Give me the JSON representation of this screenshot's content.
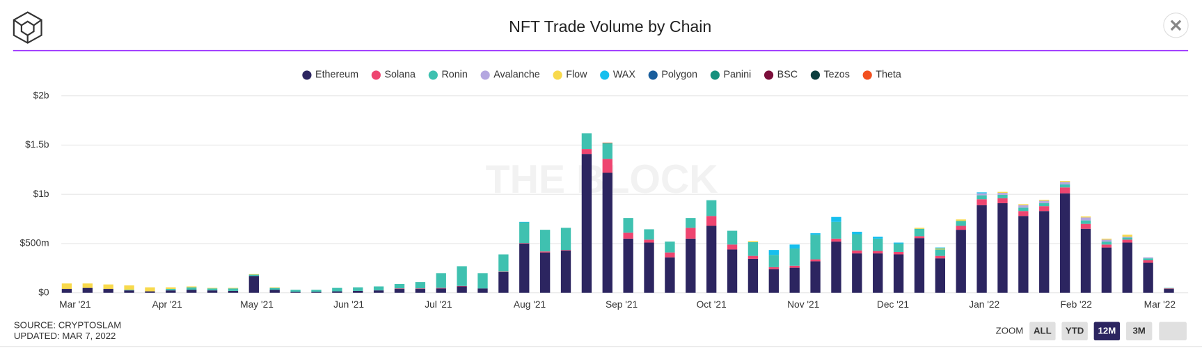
{
  "chart_data": {
    "type": "bar",
    "stacked": true,
    "title": "NFT Trade Volume by Chain",
    "watermark": "THE BLOCK",
    "source": "SOURCE: CRYPTOSLAM",
    "updated": "UPDATED: MAR 7, 2022",
    "zoom_label": "ZOOM",
    "zoom_buttons": [
      "ALL",
      "YTD",
      "12M",
      "3M"
    ],
    "zoom_active": 2,
    "categories": [
      null,
      null,
      null,
      null,
      null,
      null,
      null,
      null,
      null,
      null,
      null,
      null,
      null,
      null,
      null,
      null,
      null,
      null,
      null,
      null,
      null,
      null,
      null,
      null,
      null,
      null,
      null,
      null,
      null,
      null,
      null,
      null,
      null,
      null,
      null,
      null,
      null,
      null,
      null,
      null,
      null,
      null,
      null,
      null,
      null,
      null,
      null,
      null,
      null,
      null,
      null,
      null,
      null,
      null
    ],
    "xlim": [
      -0.5,
      53.5
    ],
    "xticks": [
      {
        "value": 0.16,
        "label": "Mar '21"
      },
      {
        "value": 4.59,
        "label": "Apr '21"
      },
      {
        "value": 8.9,
        "label": "May '21"
      },
      {
        "value": 13.32,
        "label": "Jun '21"
      },
      {
        "value": 17.63,
        "label": "Jul '21"
      },
      {
        "value": 22.02,
        "label": "Aug '21"
      },
      {
        "value": 26.44,
        "label": "Sep '21"
      },
      {
        "value": 30.76,
        "label": "Oct '21"
      },
      {
        "value": 35.18,
        "label": "Nov '21"
      },
      {
        "value": 39.49,
        "label": "Dec '21"
      },
      {
        "value": 43.88,
        "label": "Jan '22"
      },
      {
        "value": 48.3,
        "label": "Feb '22"
      },
      {
        "value": 52.32,
        "label": "Mar '22"
      }
    ],
    "ylim": [
      0,
      2000
    ],
    "yticks": [
      {
        "value": 0,
        "label": "$0"
      },
      {
        "value": 500,
        "label": "$500m"
      },
      {
        "value": 1000,
        "label": "$1b"
      },
      {
        "value": 1500,
        "label": "$1.5b"
      },
      {
        "value": 2000,
        "label": "$2b"
      }
    ],
    "grid": true,
    "legend": "top",
    "series": [
      {
        "name": "Ethereum",
        "color": "#2c2560",
        "values": [
          40,
          50,
          40,
          25,
          15,
          25,
          30,
          25,
          20,
          170,
          30,
          10,
          10,
          15,
          20,
          25,
          40,
          40,
          45,
          65,
          45,
          210,
          500,
          410,
          430,
          1410,
          1220,
          550,
          510,
          360,
          550,
          680,
          440,
          345,
          240,
          255,
          320,
          520,
          400,
          400,
          390,
          555,
          350,
          640,
          890,
          910,
          780,
          830,
          1010,
          650,
          460,
          510,
          305,
          40
        ]
      },
      {
        "name": "Solana",
        "color": "#ee4570",
        "values": [
          0,
          0,
          0,
          0,
          0,
          0,
          0,
          0,
          0,
          0,
          0,
          0,
          0,
          0,
          0,
          0,
          5,
          5,
          5,
          5,
          0,
          5,
          5,
          10,
          5,
          50,
          140,
          60,
          30,
          50,
          110,
          100,
          50,
          30,
          20,
          20,
          20,
          30,
          30,
          25,
          25,
          20,
          25,
          40,
          60,
          50,
          50,
          50,
          60,
          50,
          30,
          30,
          25,
          5
        ]
      },
      {
        "name": "Ronin",
        "color": "#3fc1b0",
        "values": [
          0,
          0,
          0,
          5,
          0,
          15,
          25,
          20,
          25,
          15,
          20,
          20,
          20,
          35,
          35,
          40,
          45,
          65,
          150,
          200,
          155,
          175,
          210,
          220,
          225,
          160,
          160,
          150,
          105,
          110,
          100,
          160,
          140,
          140,
          125,
          175,
          250,
          170,
          165,
          125,
          85,
          75,
          65,
          50,
          40,
          35,
          35,
          30,
          30,
          35,
          30,
          20,
          20,
          5
        ]
      },
      {
        "name": "Avalanche",
        "color": "#b4a7e0",
        "values": [
          0,
          0,
          0,
          0,
          0,
          0,
          0,
          0,
          0,
          0,
          0,
          0,
          0,
          0,
          0,
          0,
          0,
          0,
          0,
          0,
          0,
          0,
          0,
          0,
          0,
          0,
          0,
          0,
          0,
          0,
          0,
          0,
          0,
          0,
          0,
          0,
          0,
          0,
          0,
          0,
          0,
          0,
          0,
          0,
          20,
          20,
          25,
          25,
          25,
          30,
          20,
          10,
          10,
          0
        ]
      },
      {
        "name": "Flow",
        "color": "#f8d94b",
        "values": [
          55,
          45,
          45,
          45,
          40,
          15,
          10,
          5,
          5,
          5,
          5,
          0,
          0,
          0,
          0,
          0,
          0,
          0,
          0,
          0,
          0,
          0,
          0,
          0,
          0,
          0,
          0,
          0,
          0,
          0,
          0,
          0,
          0,
          10,
          0,
          0,
          0,
          0,
          0,
          0,
          0,
          10,
          10,
          15,
          0,
          10,
          10,
          10,
          10,
          10,
          10,
          20,
          0,
          0
        ]
      },
      {
        "name": "WAX",
        "color": "#16bfee",
        "values": [
          0,
          0,
          0,
          0,
          0,
          0,
          0,
          0,
          0,
          0,
          0,
          0,
          0,
          0,
          0,
          0,
          0,
          0,
          0,
          0,
          0,
          0,
          5,
          0,
          0,
          0,
          0,
          0,
          0,
          0,
          0,
          0,
          0,
          0,
          50,
          40,
          15,
          50,
          25,
          20,
          10,
          0,
          10,
          0,
          10,
          0,
          0,
          0,
          0,
          0,
          0,
          0,
          0,
          0
        ]
      },
      {
        "name": "Polygon",
        "color": "#1a5e9c",
        "values": [
          0,
          0,
          0,
          0,
          0,
          0,
          0,
          0,
          0,
          0,
          0,
          0,
          0,
          0,
          0,
          0,
          0,
          0,
          0,
          0,
          0,
          0,
          0,
          0,
          0,
          0,
          0,
          0,
          0,
          0,
          0,
          0,
          0,
          0,
          0,
          0,
          0,
          0,
          0,
          0,
          0,
          0,
          0,
          0,
          0,
          0,
          0,
          0,
          0,
          0,
          0,
          0,
          0,
          0
        ]
      },
      {
        "name": "Panini",
        "color": "#16917e",
        "values": [
          0,
          0,
          0,
          0,
          0,
          0,
          0,
          0,
          0,
          0,
          0,
          0,
          0,
          0,
          0,
          0,
          0,
          0,
          0,
          0,
          0,
          0,
          0,
          0,
          0,
          0,
          0,
          0,
          0,
          0,
          0,
          0,
          0,
          0,
          0,
          0,
          0,
          0,
          0,
          0,
          0,
          0,
          0,
          0,
          0,
          0,
          0,
          0,
          0,
          0,
          0,
          0,
          0,
          0
        ]
      },
      {
        "name": "BSC",
        "color": "#7b0f3b",
        "values": [
          0,
          0,
          0,
          0,
          0,
          0,
          0,
          0,
          0,
          0,
          0,
          0,
          0,
          0,
          0,
          0,
          0,
          0,
          0,
          0,
          0,
          0,
          0,
          0,
          0,
          0,
          0,
          0,
          0,
          0,
          0,
          0,
          0,
          0,
          0,
          0,
          0,
          0,
          0,
          0,
          0,
          0,
          0,
          0,
          0,
          0,
          0,
          0,
          0,
          0,
          0,
          0,
          0,
          0
        ]
      },
      {
        "name": "Tezos",
        "color": "#0b3d3d",
        "values": [
          0,
          0,
          0,
          0,
          0,
          0,
          0,
          0,
          0,
          0,
          0,
          0,
          0,
          0,
          0,
          0,
          0,
          0,
          0,
          0,
          0,
          0,
          0,
          0,
          0,
          0,
          0,
          0,
          0,
          0,
          0,
          0,
          0,
          0,
          0,
          0,
          0,
          0,
          0,
          0,
          0,
          0,
          0,
          0,
          0,
          0,
          0,
          0,
          0,
          0,
          0,
          0,
          0,
          0
        ]
      },
      {
        "name": "Theta",
        "color": "#f2501f",
        "values": [
          0,
          0,
          0,
          0,
          0,
          0,
          0,
          0,
          0,
          0,
          0,
          0,
          0,
          0,
          0,
          0,
          0,
          0,
          0,
          0,
          0,
          0,
          0,
          0,
          0,
          0,
          5,
          0,
          0,
          0,
          0,
          0,
          0,
          0,
          0,
          0,
          0,
          0,
          0,
          0,
          0,
          0,
          0,
          0,
          0,
          0,
          0,
          0,
          0,
          0,
          0,
          0,
          0,
          0
        ]
      }
    ]
  }
}
